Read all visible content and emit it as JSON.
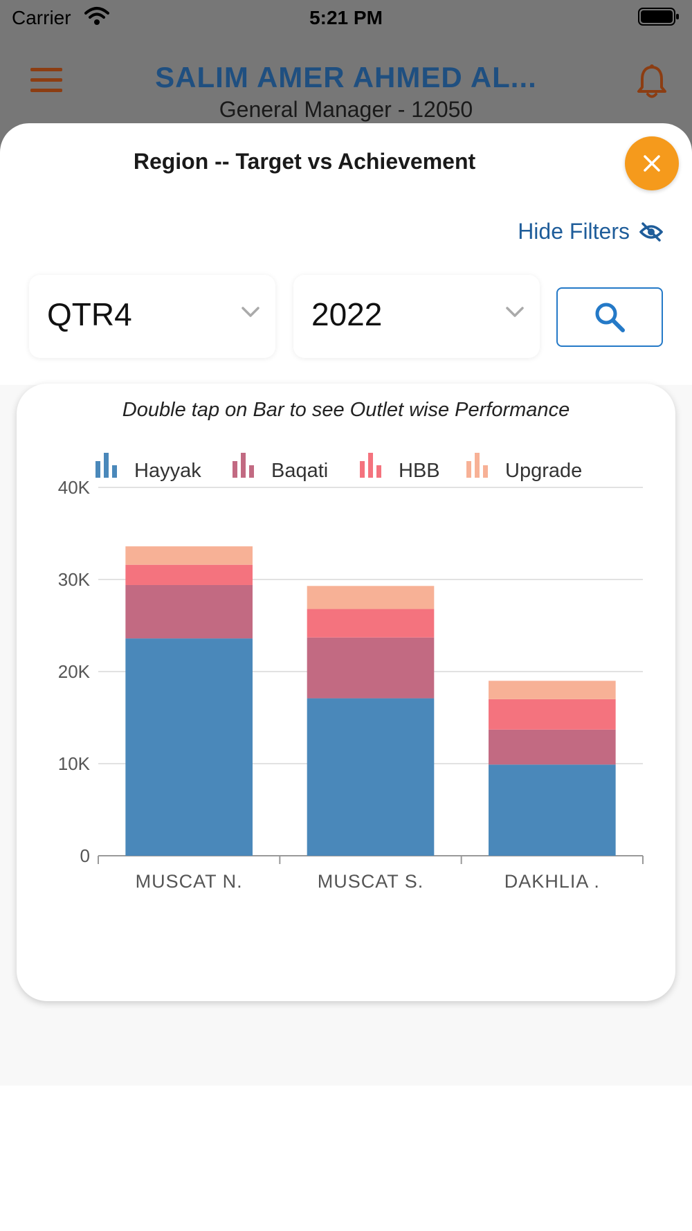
{
  "status_bar": {
    "carrier": "Carrier",
    "time": "5:21 PM"
  },
  "header": {
    "title": "SALIM AMER AHMED AL...",
    "subtitle": "General Manager - 12050"
  },
  "sheet": {
    "title": "Region -- Target vs Achievement",
    "hide_filters_label": "Hide Filters",
    "filters": {
      "quarter": "QTR4",
      "year": "2022"
    }
  },
  "colors": {
    "accent": "#f59a1c",
    "hayyak": "#4a88ba",
    "baqati": "#c26a82",
    "hbb": "#f4737e",
    "upgrade": "#f7b196"
  },
  "chart_hint": "Double tap on Bar to see Outlet wise Performance",
  "chart_data": {
    "type": "bar",
    "stacked": true,
    "categories": [
      "MUSCAT N.",
      "MUSCAT S.",
      "DAKHLIA ."
    ],
    "series": [
      {
        "name": "Hayyak",
        "color": "#4a88ba",
        "values": [
          23600,
          17100,
          9900
        ]
      },
      {
        "name": "Baqati",
        "color": "#c26a82",
        "values": [
          5800,
          6600,
          3800
        ]
      },
      {
        "name": "HBB",
        "color": "#f4737e",
        "values": [
          2200,
          3100,
          3300
        ]
      },
      {
        "name": "Upgrade",
        "color": "#f7b196",
        "values": [
          2000,
          2500,
          2000
        ]
      }
    ],
    "yticks": [
      "0",
      "10K",
      "20K",
      "30K",
      "40K"
    ],
    "ylim": [
      0,
      40000
    ],
    "legend": "top",
    "grid": true
  }
}
